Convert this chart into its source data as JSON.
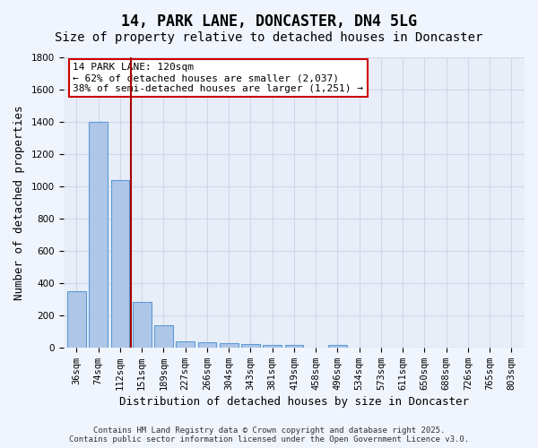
{
  "title": "14, PARK LANE, DONCASTER, DN4 5LG",
  "subtitle": "Size of property relative to detached houses in Doncaster",
  "xlabel": "Distribution of detached houses by size in Doncaster",
  "ylabel": "Number of detached properties",
  "bar_labels": [
    "36sqm",
    "74sqm",
    "112sqm",
    "151sqm",
    "189sqm",
    "227sqm",
    "266sqm",
    "304sqm",
    "343sqm",
    "381sqm",
    "419sqm",
    "458sqm",
    "496sqm",
    "534sqm",
    "573sqm",
    "611sqm",
    "650sqm",
    "688sqm",
    "726sqm",
    "765sqm",
    "803sqm"
  ],
  "bar_values": [
    350,
    1400,
    1040,
    280,
    140,
    40,
    30,
    25,
    20,
    15,
    15,
    0,
    15,
    0,
    0,
    0,
    0,
    0,
    0,
    0,
    0
  ],
  "bar_color": "#aec6e8",
  "bar_edge_color": "#5b9bd5",
  "grid_color": "#d0d8e8",
  "background_color": "#e8eef8",
  "fig_background_color": "#f0f4fc",
  "vline_x": 2.5,
  "vline_color": "#aa0000",
  "annotation_text": "14 PARK LANE: 120sqm\n← 62% of detached houses are smaller (2,037)\n38% of semi-detached houses are larger (1,251) →",
  "annotation_box_color": "#cc0000",
  "ylim": [
    0,
    1800
  ],
  "yticks": [
    0,
    200,
    400,
    600,
    800,
    1000,
    1200,
    1400,
    1600,
    1800
  ],
  "footer_text": "Contains HM Land Registry data © Crown copyright and database right 2025.\nContains public sector information licensed under the Open Government Licence v3.0.",
  "title_fontsize": 12,
  "subtitle_fontsize": 10,
  "axis_label_fontsize": 9,
  "tick_fontsize": 7.5,
  "annotation_fontsize": 8,
  "footer_fontsize": 6.5
}
